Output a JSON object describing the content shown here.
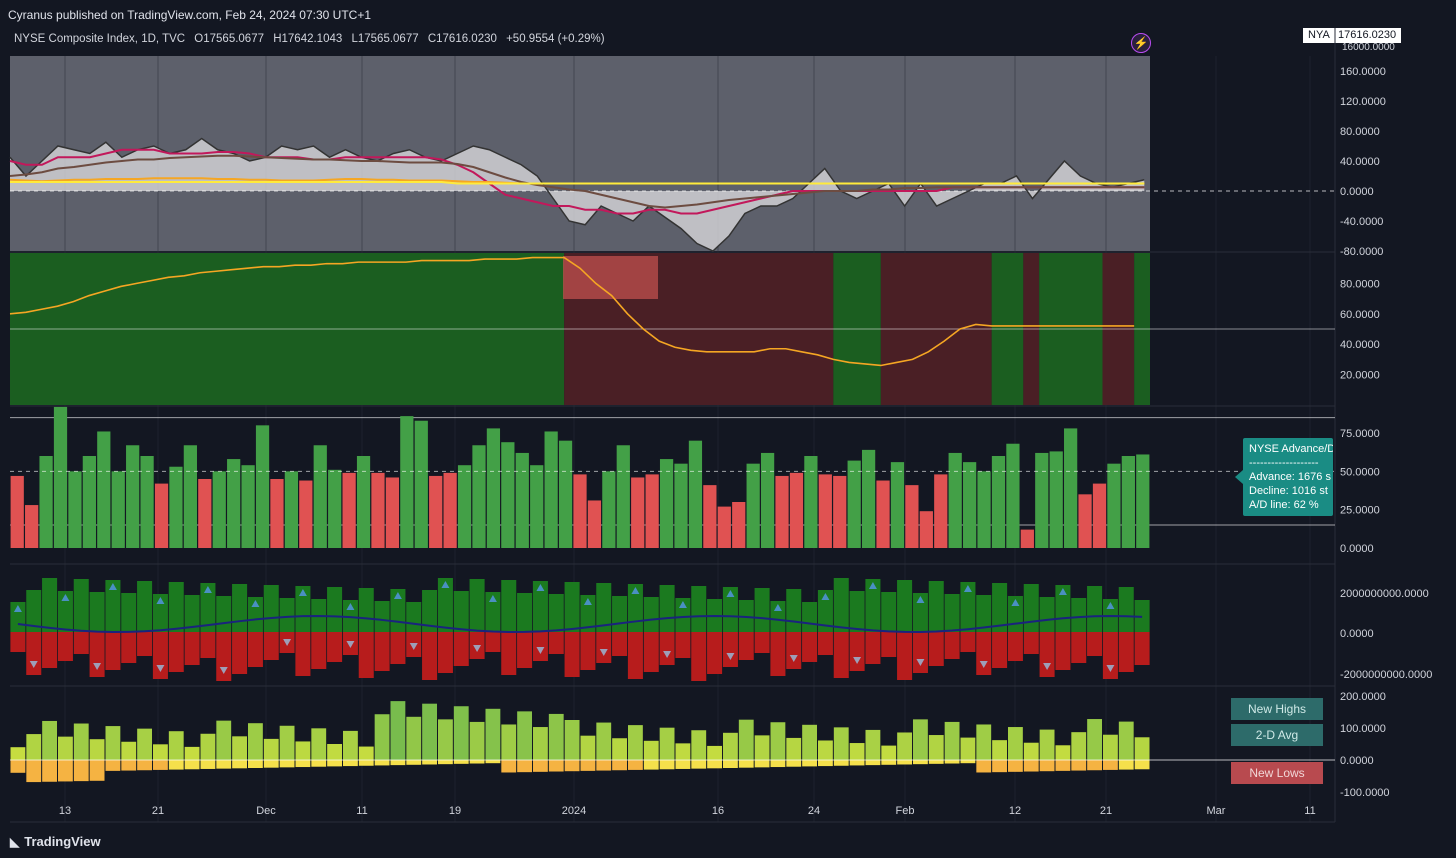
{
  "header": {
    "publisher": "Cyranus published on TradingView.com, Feb 24, 2024 07:30 UTC+1",
    "symbol": "NYSE Composite Index, 1D, TVC",
    "open": "O17565.0677",
    "high": "H17642.1043",
    "low": "L17565.0677",
    "close": "C17616.0230",
    "change": "+50.9554 (+0.29%)",
    "ticker": "NYA",
    "price": "17616.0230",
    "price_below": "16000.0000"
  },
  "colors": {
    "background": "#131722",
    "green_bg": "#1b5e20",
    "red_bg": "#4a1f25",
    "green_bar": "#43a047",
    "red_bar": "#e05252",
    "orange_line": "#f5a623",
    "tooltip": "#1a8c84"
  },
  "x_axis": {
    "labels": [
      "13",
      "21",
      "Dec",
      "11",
      "19",
      "2024",
      "16",
      "24",
      "Feb",
      "12",
      "21",
      "Mar",
      "11"
    ]
  },
  "tooltip": {
    "title": "NYSE Advance/D",
    "separator": "-------------------",
    "advance": "Advance: 1676 s",
    "decline": "Decline: 1016 st",
    "ad_line": "A/D line: 62 %"
  },
  "legend": {
    "new_highs": "New Highs",
    "avg": "2-D Avg",
    "new_lows": "New Lows"
  },
  "footer": {
    "brand": "TradingView"
  },
  "chart_data": [
    {
      "type": "line",
      "title": "",
      "y_ticks": [
        "160.0000",
        "120.0000",
        "80.0000",
        "40.0000",
        "0.0000",
        "-40.0000",
        "-80.0000"
      ],
      "ylim": [
        -80,
        180
      ],
      "series": [
        {
          "color": "#d8d8d8",
          "values": [
            45,
            20,
            40,
            60,
            55,
            50,
            65,
            45,
            55,
            60,
            50,
            55,
            70,
            55,
            50,
            40,
            45,
            60,
            55,
            60,
            45,
            55,
            45,
            40,
            50,
            55,
            45,
            40,
            50,
            60,
            55,
            45,
            35,
            20,
            -10,
            -40,
            -45,
            -20,
            -30,
            -40,
            -20,
            -35,
            -50,
            -70,
            -80,
            -60,
            -30,
            -20,
            -20,
            -10,
            10,
            30,
            0,
            -10,
            0,
            10,
            -20,
            10,
            -20,
            -10,
            0,
            10,
            10,
            20,
            -10,
            15,
            40,
            20,
            10,
            5,
            10,
            15
          ]
        },
        {
          "color": "#c2185b",
          "values": [
            40,
            35,
            35,
            45,
            45,
            45,
            50,
            55,
            55,
            55,
            50,
            50,
            50,
            52,
            52,
            50,
            45,
            45,
            45,
            42,
            42,
            45,
            45,
            45,
            45,
            45,
            45,
            42,
            35,
            25,
            10,
            -5,
            -10,
            -15,
            -20,
            -20,
            -25,
            -25,
            -30,
            -30,
            -25,
            -25,
            -30,
            -30,
            -25,
            -20,
            -15,
            -10,
            -5,
            0,
            0,
            0,
            0,
            0,
            0,
            0,
            0,
            0,
            0,
            5,
            5,
            5,
            5,
            5,
            5,
            5,
            5,
            5,
            5,
            5,
            5,
            5
          ]
        },
        {
          "color": "#6d4c41",
          "values": [
            20,
            22,
            25,
            30,
            32,
            35,
            38,
            40,
            42,
            42,
            44,
            45,
            46,
            47,
            47,
            46,
            45,
            44,
            43,
            42,
            42,
            41,
            40,
            40,
            39,
            38,
            38,
            38,
            36,
            32,
            25,
            18,
            12,
            8,
            5,
            2,
            0,
            -5,
            -10,
            -15,
            -20,
            -22,
            -20,
            -18,
            -15,
            -12,
            -10,
            -8,
            -6,
            -4,
            -2,
            0,
            0,
            0,
            2,
            2,
            4,
            4,
            5,
            5,
            5,
            5,
            5,
            5,
            5,
            5,
            5,
            5,
            5,
            5,
            5,
            5
          ]
        },
        {
          "color": "#f5a623",
          "values": [
            15,
            14,
            13,
            14,
            15,
            15,
            16,
            16,
            16,
            17,
            17,
            17,
            17,
            16,
            16,
            15,
            15,
            14,
            14,
            14,
            15,
            16,
            16,
            15,
            15,
            14,
            14,
            14,
            13,
            12,
            12,
            11,
            10,
            10,
            10,
            10,
            10,
            10,
            10,
            10,
            10,
            10,
            10,
            10,
            10,
            10,
            10,
            10,
            10,
            10,
            10,
            10,
            10,
            10,
            10,
            10,
            10,
            10,
            10,
            10,
            10,
            10,
            10,
            10,
            10,
            10,
            10,
            10,
            10,
            10,
            10,
            10
          ]
        },
        {
          "color": "#ffeb3b",
          "values": [
            12,
            12,
            12,
            12,
            12,
            12,
            12,
            12,
            12,
            12,
            12,
            12,
            12,
            12,
            12,
            12,
            12,
            12,
            12,
            12,
            12,
            12,
            12,
            12,
            12,
            12,
            12,
            12,
            10,
            10,
            10,
            10,
            10,
            10,
            10,
            10,
            10,
            10,
            10,
            10,
            10,
            10,
            10,
            10,
            10,
            10,
            10,
            10,
            10,
            10,
            10,
            10,
            10,
            10,
            10,
            10,
            10,
            10,
            10,
            10,
            10,
            10,
            10,
            10,
            10,
            10,
            10,
            10,
            10,
            10,
            10,
            10
          ]
        }
      ]
    },
    {
      "type": "line",
      "title": "",
      "y_ticks": [
        "80.0000",
        "60.0000",
        "40.0000",
        "20.0000"
      ],
      "ylim": [
        0,
        100
      ],
      "regions": [
        {
          "from": 0,
          "to": 35,
          "state": "green"
        },
        {
          "from": 35,
          "to": 52,
          "state": "red"
        },
        {
          "from": 52,
          "to": 55,
          "state": "green"
        },
        {
          "from": 55,
          "to": 62,
          "state": "red"
        },
        {
          "from": 62,
          "to": 64,
          "state": "green"
        },
        {
          "from": 64,
          "to": 65,
          "state": "red"
        },
        {
          "from": 65,
          "to": 69,
          "state": "green"
        },
        {
          "from": 69,
          "to": 71,
          "state": "red"
        },
        {
          "from": 71,
          "to": 72,
          "state": "green"
        }
      ],
      "values": [
        60,
        61,
        63,
        65,
        68,
        72,
        75,
        78,
        80,
        82,
        84,
        85,
        87,
        88,
        89,
        90,
        91,
        91,
        92,
        92,
        93,
        93,
        94,
        94,
        94,
        94,
        95,
        95,
        95,
        95,
        96,
        96,
        96,
        97,
        97,
        97,
        90,
        80,
        72,
        60,
        50,
        42,
        38,
        36,
        35,
        35,
        35,
        35,
        37,
        37,
        35,
        33,
        30,
        28,
        27,
        26,
        28,
        30,
        35,
        42,
        50,
        53,
        52,
        52,
        52,
        52,
        52,
        52,
        52,
        52,
        52,
        52
      ]
    },
    {
      "type": "bar",
      "title": "",
      "y_ticks": [
        "75.0000",
        "50.0000",
        "25.0000",
        "0.0000"
      ],
      "ylim": [
        0,
        90
      ],
      "values": [
        47,
        28,
        60,
        92,
        50,
        60,
        76,
        50,
        67,
        60,
        42,
        53,
        67,
        45,
        50,
        58,
        54,
        80,
        45,
        50,
        44,
        67,
        51,
        49,
        60,
        49,
        46,
        86,
        83,
        47,
        49,
        54,
        67,
        78,
        69,
        62,
        54,
        76,
        70,
        48,
        31,
        50,
        67,
        46,
        48,
        58,
        55,
        70,
        41,
        27,
        30,
        55,
        62,
        47,
        49,
        60,
        48,
        47,
        57,
        64,
        44,
        56,
        41,
        24,
        48,
        62,
        56,
        50,
        60,
        68,
        12,
        62,
        63,
        78,
        35,
        42,
        55,
        60,
        61
      ]
    },
    {
      "type": "bar",
      "title": "",
      "y_ticks": [
        "2000000000.0000",
        "0.0000",
        "-2000000000.0000"
      ],
      "ylim": [
        -3000000000,
        3000000000
      ]
    },
    {
      "type": "bar",
      "title": "",
      "y_ticks": [
        "200.0000",
        "100.0000",
        "0.0000",
        "-100.0000"
      ],
      "ylim": [
        -120,
        220
      ]
    }
  ]
}
